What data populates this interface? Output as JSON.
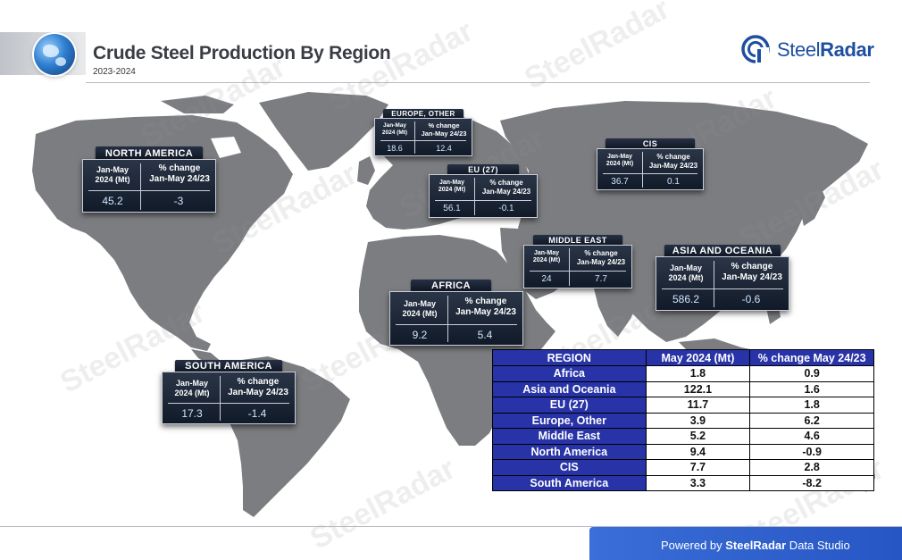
{
  "header": {
    "title": "Crude Steel Production By Region",
    "subtitle": "2023-2024"
  },
  "brand": {
    "logo_light": "Steel",
    "logo_bold": "Radar",
    "watermark": "SteelRadar",
    "color": "#1f4fa0"
  },
  "cards": [
    {
      "name": "NORTH AMERICA",
      "col1": "Jan-May\n2024 (Mt)",
      "col2": "% change\nJan-May 24/23",
      "v1": "45.2",
      "v2": "-3"
    },
    {
      "name": "EUROPE, OTHER",
      "col1": "Jan-May\n2024 (Mt)",
      "col2": "% change\nJan-May 24/23",
      "v1": "18.6",
      "v2": "12.4"
    },
    {
      "name": "EU (27)",
      "col1": "Jan-May\n2024 (Mt)",
      "col2": "% change\nJan-May 24/23",
      "v1": "56.1",
      "v2": "-0.1"
    },
    {
      "name": "CIS",
      "col1": "Jan-May\n2024 (Mt)",
      "col2": "% change\nJan-May 24/23",
      "v1": "36.7",
      "v2": "0.1"
    },
    {
      "name": "MIDDLE EAST",
      "col1": "Jan-May\n2024 (Mt)",
      "col2": "% change\nJan-May 24/23",
      "v1": "24",
      "v2": "7.7"
    },
    {
      "name": "ASIA AND OCEANIA",
      "col1": "Jan-May\n2024 (Mt)",
      "col2": "% change\nJan-May 24/23",
      "v1": "586.2",
      "v2": "-0.6"
    },
    {
      "name": "AFRICA",
      "col1": "Jan-May\n2024 (Mt)",
      "col2": "% change\nJan-May 24/23",
      "v1": "9.2",
      "v2": "5.4"
    },
    {
      "name": "SOUTH AMERICA",
      "col1": "Jan-May\n2024 (Mt)",
      "col2": "% change\nJan-May 24/23",
      "v1": "17.3",
      "v2": "-1.4"
    }
  ],
  "table": {
    "headers": [
      "REGION",
      "May 2024 (Mt)",
      "% change May 24/23"
    ],
    "rows": [
      [
        "Africa",
        "1.8",
        "0.9"
      ],
      [
        "Asia and Oceania",
        "122.1",
        "1.6"
      ],
      [
        "EU (27)",
        "11.7",
        "1.8"
      ],
      [
        "Europe, Other",
        "3.9",
        "6.2"
      ],
      [
        "Middle East",
        "5.2",
        "4.6"
      ],
      [
        "North America",
        "9.4",
        "-0.9"
      ],
      [
        "CIS",
        "7.7",
        "2.8"
      ],
      [
        "South America",
        "3.3",
        "-8.2"
      ]
    ],
    "header_color": "#2733a6"
  },
  "footer": {
    "prefix": "Powered by ",
    "brand": "SteelRadar",
    "suffix": " Data Studio"
  }
}
